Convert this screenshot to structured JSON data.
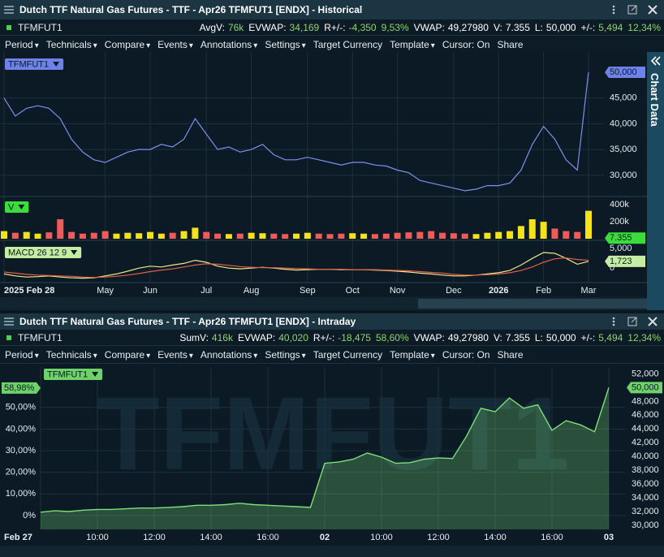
{
  "top": {
    "title": "Dutch TTF Natural Gas Futures - TTF - Apr26 TFMFUT1 [ENDX] - Historical",
    "symbol": "TFMFUT1",
    "stats": [
      {
        "label": "AvgV:",
        "value": "76k",
        "color": "#8ed46b"
      },
      {
        "label": "EVWAP:",
        "value": "34,169",
        "color": "#8ed46b"
      },
      {
        "label": "R+/-:",
        "value": "-4,350",
        "color": "#8ed46b"
      },
      {
        "value": "9,53%",
        "color": "#8ed46b"
      },
      {
        "label": "VWAP:",
        "value": "49,27980",
        "color": "#ffffff"
      },
      {
        "label": "V:",
        "value": "7.355",
        "color": "#ffffff"
      },
      {
        "label": "L:",
        "value": "50,000",
        "color": "#ffffff"
      },
      {
        "label": "+/-:",
        "value": "5,494",
        "color": "#8ed46b"
      },
      {
        "value": "12,34%",
        "color": "#8ed46b"
      }
    ],
    "menu": [
      {
        "text": "Period",
        "dropdown": true
      },
      {
        "text": "Technicals",
        "dropdown": true
      },
      {
        "text": "Compare",
        "dropdown": true
      },
      {
        "text": "Events",
        "dropdown": true
      },
      {
        "text": "Annotations",
        "dropdown": true
      },
      {
        "text": "Settings",
        "dropdown": true
      },
      {
        "text": "Target Currency",
        "dropdown": false
      },
      {
        "text": "Template",
        "dropdown": true
      },
      {
        "text": "Cursor: On",
        "dropdown": false
      },
      {
        "text": "Share",
        "dropdown": false
      }
    ],
    "side_tab": "Chart Data",
    "categories": [
      "2025 Feb 28",
      null,
      null,
      null,
      null,
      null,
      null,
      null,
      null,
      "May",
      null,
      null,
      null,
      "Jun",
      null,
      null,
      null,
      null,
      "Jul",
      null,
      null,
      null,
      "Aug",
      null,
      null,
      null,
      null,
      "Sep",
      null,
      null,
      null,
      "Oct",
      null,
      null,
      null,
      "Nov",
      null,
      null,
      null,
      null,
      "Dec",
      null,
      null,
      null,
      "2026",
      null,
      null,
      null,
      "Feb",
      null,
      null,
      null,
      "Mar"
    ],
    "price": {
      "type": "line",
      "grid": true,
      "ylim": [
        26.2,
        53.3
      ],
      "yticks": [
        {
          "value": 30,
          "label": "30,000"
        },
        {
          "value": 35,
          "label": "35,000"
        },
        {
          "value": 40,
          "label": "40,000"
        },
        {
          "value": 45,
          "label": "45,000"
        }
      ],
      "series": [
        {
          "name": "TFMFUT1",
          "color": "#7f8ff0",
          "values": [
            45,
            41.5,
            43,
            43.5,
            43,
            41,
            37,
            34.5,
            33,
            32.5,
            33.5,
            34.5,
            35,
            35,
            36,
            35.5,
            37,
            41,
            38,
            35,
            35.5,
            34.5,
            35,
            36,
            34,
            33,
            33,
            33.5,
            33,
            32.5,
            32,
            32.5,
            32.5,
            32,
            31.8,
            31,
            30.5,
            29,
            28.5,
            28,
            27.5,
            27,
            27.3,
            28,
            28,
            28.5,
            31,
            36,
            39.5,
            37,
            33,
            31,
            50
          ]
        }
      ],
      "last_marker": {
        "value": 50,
        "label": "50,000",
        "color": "#6f82e8"
      }
    },
    "volume": {
      "type": "bar",
      "grid": false,
      "ylim": [
        0,
        480000
      ],
      "yticks": [
        {
          "value": 200000,
          "label": "200k"
        },
        {
          "value": 400000,
          "label": "400k"
        }
      ],
      "up_color": "#f4e21c",
      "down_color": "#ef5b5b",
      "series": [
        {
          "name": "V",
          "values": [
            90000,
            70000,
            80000,
            60000,
            75000,
            230000,
            80000,
            60000,
            70000,
            90000,
            60000,
            70000,
            65000,
            80000,
            60000,
            70000,
            90000,
            130000,
            80000,
            60000,
            55000,
            60000,
            70000,
            65000,
            60000,
            55000,
            60000,
            70000,
            60000,
            55000,
            60000,
            65000,
            60000,
            55000,
            60000,
            70000,
            75000,
            80000,
            90000,
            70000,
            65000,
            60000,
            55000,
            70000,
            80000,
            90000,
            150000,
            230000,
            200000,
            120000,
            90000,
            80000,
            330000
          ]
        }
      ],
      "last_marker": {
        "value": 7355,
        "label": "7.355",
        "color": "#3ddc3d"
      }
    },
    "macd": {
      "type": "line",
      "grid": false,
      "legend": "MACD 26 12 9",
      "ylim": [
        -3.3,
        6.3
      ],
      "yticks": [
        0,
        {
          "value": 5,
          "label": "5,000"
        }
      ],
      "series": [
        {
          "color": "#f0e68c",
          "values": [
            -1.5,
            -2,
            -2.3,
            -2.2,
            -2,
            -2.3,
            -2.5,
            -2.6,
            -2.5,
            -2,
            -1.5,
            -0.8,
            0,
            0.5,
            0.3,
            0.8,
            1.2,
            2,
            1.5,
            0.5,
            0,
            -0.2,
            0,
            0.2,
            0,
            -0.3,
            -0.5,
            -0.4,
            -0.3,
            -0.3,
            -0.4,
            -0.4,
            -0.4,
            -0.5,
            -0.6,
            -0.8,
            -1,
            -1.3,
            -1.5,
            -1.8,
            -2,
            -2,
            -1.8,
            -1.5,
            -1.2,
            -0.6,
            0.8,
            2.5,
            4,
            3.8,
            2.5,
            1,
            1.723
          ]
        },
        {
          "color": "#e0604a",
          "values": [
            -1,
            -1.3,
            -1.6,
            -1.8,
            -1.9,
            -2,
            -2.1,
            -2.3,
            -2.4,
            -2.3,
            -2.1,
            -1.8,
            -1.4,
            -0.9,
            -0.5,
            -0.2,
            0.3,
            0.8,
            1.1,
            1,
            0.7,
            0.4,
            0.2,
            0.1,
            0.1,
            0,
            -0.1,
            -0.2,
            -0.3,
            -0.3,
            -0.3,
            -0.4,
            -0.4,
            -0.4,
            -0.5,
            -0.6,
            -0.7,
            -0.9,
            -1.1,
            -1.3,
            -1.6,
            -1.8,
            -1.8,
            -1.7,
            -1.5,
            -1.2,
            -0.6,
            0.3,
            1.5,
            2.4,
            2.6,
            2.2,
            2
          ]
        }
      ],
      "last_marker": {
        "value": 1.723,
        "label": "1,723",
        "color": "#c4eca2"
      }
    }
  },
  "bottom": {
    "title": "Dutch TTF Natural Gas Futures - TTF - Apr26 TFMFUT1 [ENDX] - Intraday",
    "symbol": "TFMFUT1",
    "stats": [
      {
        "label": "SumV:",
        "value": "416k",
        "color": "#8ed46b"
      },
      {
        "label": "EVWAP:",
        "value": "40,020",
        "color": "#8ed46b"
      },
      {
        "label": "R+/-:",
        "value": "-18,475",
        "color": "#8ed46b"
      },
      {
        "value": "58,60%",
        "color": "#8ed46b"
      },
      {
        "label": "VWAP:",
        "value": "49,27980",
        "color": "#ffffff"
      },
      {
        "label": "V:",
        "value": "7.355",
        "color": "#ffffff"
      },
      {
        "label": "L:",
        "value": "50,000",
        "color": "#ffffff"
      },
      {
        "label": "+/-:",
        "value": "5,494",
        "color": "#8ed46b"
      },
      {
        "value": "12,34%",
        "color": "#8ed46b"
      }
    ],
    "menu": [
      {
        "text": "Period",
        "dropdown": true
      },
      {
        "text": "Technicals",
        "dropdown": true
      },
      {
        "text": "Compare",
        "dropdown": true
      },
      {
        "text": "Events",
        "dropdown": true
      },
      {
        "text": "Annotations",
        "dropdown": true
      },
      {
        "text": "Settings",
        "dropdown": true
      },
      {
        "text": "Target Currency",
        "dropdown": false
      },
      {
        "text": "Template",
        "dropdown": true
      },
      {
        "text": "Cursor: On",
        "dropdown": false
      },
      {
        "text": "Share",
        "dropdown": false
      }
    ],
    "chart": {
      "type": "area",
      "grid": true,
      "watermark": "TFMFUT1",
      "categories": [
        "Feb 27",
        null,
        null,
        null,
        "10:00",
        null,
        null,
        null,
        "12:00",
        null,
        null,
        null,
        "14:00",
        null,
        null,
        null,
        "16:00",
        null,
        null,
        null,
        "02",
        null,
        null,
        null,
        "10:00",
        null,
        null,
        null,
        "12:00",
        null,
        null,
        null,
        "14:00",
        null,
        null,
        null,
        "16:00",
        null,
        null,
        null,
        "03"
      ],
      "series": [
        {
          "name": "TFMFUT1",
          "color": "#7ee07a",
          "values": [
            31.9,
            32.1,
            32.0,
            32.2,
            32.3,
            32.3,
            32.4,
            32.5,
            32.5,
            32.6,
            32.7,
            32.9,
            32.9,
            33.0,
            33.2,
            33.0,
            32.9,
            32.8,
            32.7,
            32.6,
            39.0,
            39.2,
            39.6,
            40.5,
            39.9,
            39.0,
            39.1,
            39.6,
            39.8,
            39.7,
            43.0,
            47.0,
            46.5,
            48.5,
            47.0,
            47.5,
            43.8,
            45.2,
            44.6,
            43.6,
            50.0
          ]
        }
      ],
      "ylim": [
        29.4,
        53
      ],
      "yticks": [
        {
          "value": 30,
          "label": "30,000"
        },
        {
          "value": 32,
          "label": "32,000"
        },
        {
          "value": 34,
          "label": "34,000"
        },
        {
          "value": 36,
          "label": "36,000"
        },
        {
          "value": 38,
          "label": "38,000"
        },
        {
          "value": 40,
          "label": "40,000"
        },
        {
          "value": 42,
          "label": "42,000"
        },
        {
          "value": 44,
          "label": "44,000"
        },
        {
          "value": 46,
          "label": "46,000"
        },
        {
          "value": 48,
          "label": "48,000"
        },
        {
          "value": 50,
          "label": "50,000"
        },
        {
          "value": 52,
          "label": "52,000"
        }
      ],
      "y2lim": [
        -6.4,
        68.7
      ],
      "y2ticks": [
        {
          "value": 0,
          "label": "0%"
        },
        {
          "value": 10,
          "label": "10,00%"
        },
        {
          "value": 20,
          "label": "20,00%"
        },
        {
          "value": 30,
          "label": "30,00%"
        },
        {
          "value": 40,
          "label": "40,00%"
        },
        {
          "value": 50,
          "label": "50,00%"
        }
      ],
      "last_marker": {
        "value": 50,
        "label": "50,000",
        "color": "#6fd16a"
      },
      "y2_marker": {
        "value": 58.98,
        "label": "58,98%",
        "color": "#6fd16a"
      }
    }
  }
}
